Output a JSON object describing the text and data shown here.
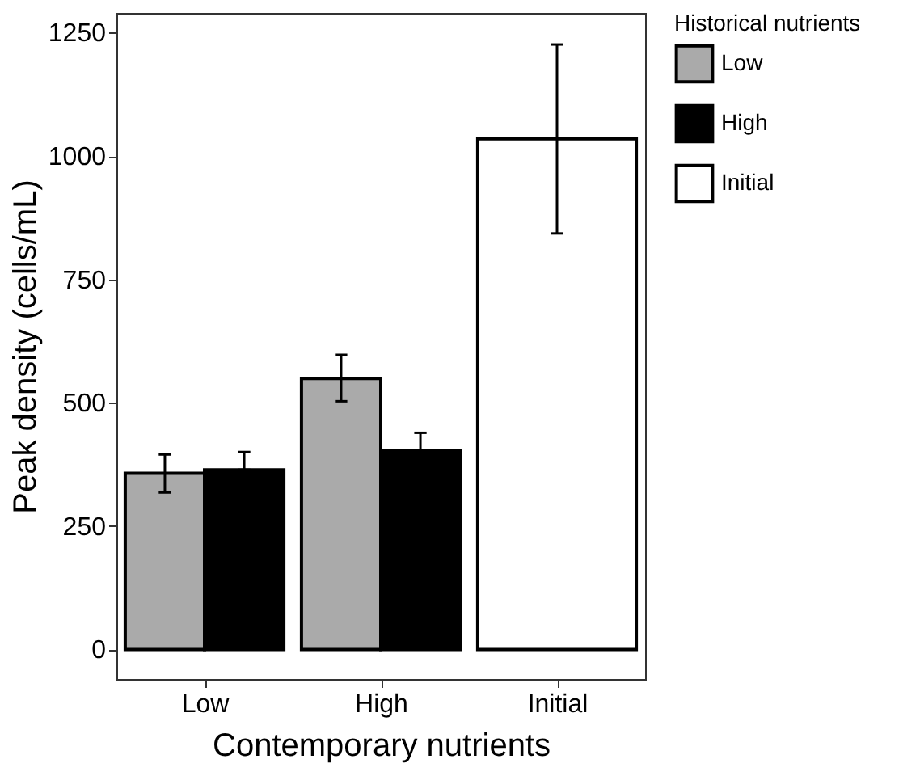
{
  "chart_data": {
    "type": "bar",
    "xlabel": "Contemporary nutrients",
    "ylabel": "Peak density (cells/mL)",
    "legend_title": "Historical nutrients",
    "categories": [
      "Low",
      "High",
      "Initial"
    ],
    "series": [
      {
        "name": "Low",
        "color": "#aaaaaa",
        "values": [
          357,
          549,
          null
        ],
        "errors": [
          [
            318,
            395
          ],
          [
            503,
            597
          ],
          null
        ]
      },
      {
        "name": "High",
        "color": "#000000",
        "values": [
          364,
          402,
          null
        ],
        "errors": [
          [
            364,
            400
          ],
          [
            402,
            439
          ],
          null
        ]
      },
      {
        "name": "Initial",
        "color": "#ffffff",
        "values": [
          null,
          null,
          1035
        ],
        "errors": [
          null,
          null,
          [
            843,
            1226
          ]
        ]
      }
    ],
    "ylim": [
      -60,
      1290
    ],
    "yticks": [
      0,
      250,
      500,
      750,
      1000,
      1250
    ],
    "grid": false,
    "legend": "right"
  }
}
